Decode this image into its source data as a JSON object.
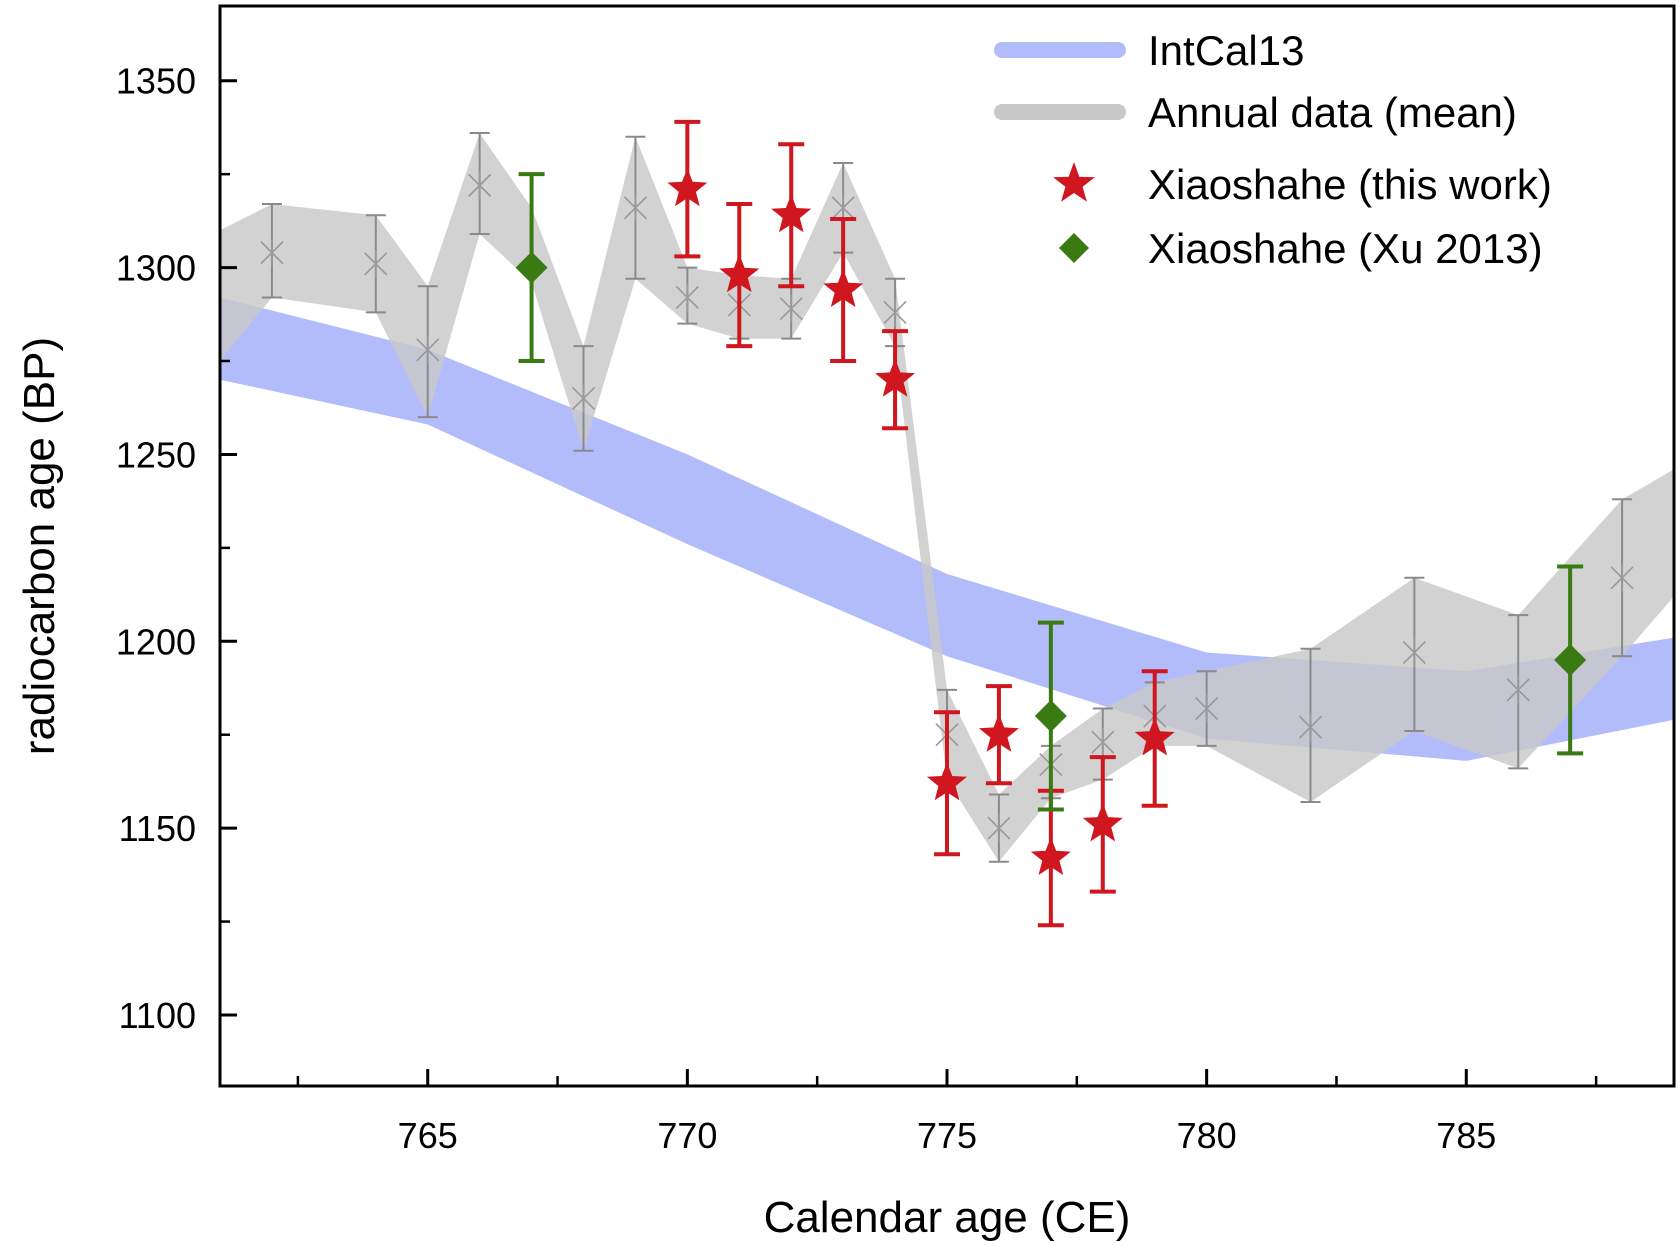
{
  "chart_data": {
    "type": "scatter",
    "title": "",
    "xlabel": "Calendar age (CE)",
    "ylabel": "radiocarbon age (BP)",
    "xlim": [
      761,
      789
    ],
    "ylim": [
      1081,
      1370
    ],
    "x_ticks": [
      765,
      770,
      775,
      780,
      785
    ],
    "x_minor_ticks": [
      762.5,
      767.5,
      772.5,
      777.5,
      782.5,
      787.5
    ],
    "y_ticks": [
      1100,
      1150,
      1200,
      1250,
      1300,
      1350
    ],
    "y_minor_ticks": [
      1125,
      1175,
      1225,
      1275,
      1325
    ],
    "grid": false,
    "legend_position": "top-right",
    "legend": [
      {
        "label": "IntCal13",
        "symbol": "band",
        "color": "#b3bcfb"
      },
      {
        "label": "Annual data (mean)",
        "symbol": "band",
        "color": "#c8c8c8"
      },
      {
        "label": "Xiaoshahe (this work)",
        "symbol": "star",
        "color": "#d0161f"
      },
      {
        "label": "Xiaoshahe (Xu 2013)",
        "symbol": "diamond",
        "color": "#3a7a13"
      }
    ],
    "intcal13_band": {
      "x": [
        761,
        765,
        770,
        775,
        780,
        785,
        789
      ],
      "upper": [
        1292,
        1278,
        1250,
        1218,
        1197,
        1192,
        1201
      ],
      "lower": [
        1270,
        1258,
        1226,
        1196,
        1174,
        1168,
        1179
      ]
    },
    "annual_mean": {
      "x": [
        761,
        762,
        764,
        765,
        766,
        767,
        768,
        769,
        770,
        771,
        772,
        773,
        774,
        775,
        776,
        777,
        778,
        779,
        780,
        782,
        784,
        786,
        788,
        789
      ],
      "y": [
        1290,
        1304,
        1301,
        1278,
        1322,
        1303,
        1265,
        1316,
        1292,
        1290,
        1289,
        1316,
        1288,
        1175,
        1150,
        1167,
        1173,
        1180,
        1182,
        1177,
        1197,
        1187,
        1217,
        1230
      ],
      "upper": [
        1310,
        1317,
        1314,
        1295,
        1336,
        1316,
        1279,
        1335,
        1300,
        1298,
        1297,
        1328,
        1297,
        1187,
        1159,
        1172,
        1182,
        1189,
        1192,
        1198,
        1217,
        1207,
        1238,
        1246
      ],
      "lower": [
        1275,
        1292,
        1288,
        1260,
        1309,
        1296,
        1251,
        1297,
        1285,
        1281,
        1281,
        1304,
        1279,
        1163,
        1141,
        1158,
        1163,
        1172,
        1172,
        1157,
        1176,
        1166,
        1196,
        1212
      ],
      "error_bars_at": [
        762,
        764,
        765,
        766,
        768,
        769,
        770,
        771,
        772,
        773,
        774,
        775,
        776,
        777,
        778,
        779,
        780,
        782,
        784,
        786,
        788
      ]
    },
    "series": [
      {
        "name": "Xiaoshahe (this work)",
        "marker": "star",
        "color": "#d0161f",
        "x": [
          770,
          771,
          772,
          773,
          774,
          775,
          776,
          777,
          778,
          779
        ],
        "y": [
          1321,
          1298,
          1314,
          1294,
          1270,
          1162,
          1175,
          1142,
          1151,
          1174
        ],
        "err": [
          18,
          19,
          19,
          19,
          13,
          19,
          13,
          18,
          18,
          18
        ]
      },
      {
        "name": "Xiaoshahe (Xu 2013)",
        "marker": "diamond",
        "color": "#3a7a13",
        "x": [
          767,
          777,
          787
        ],
        "y": [
          1300,
          1180,
          1195
        ],
        "err": [
          25,
          25,
          25
        ]
      }
    ]
  }
}
